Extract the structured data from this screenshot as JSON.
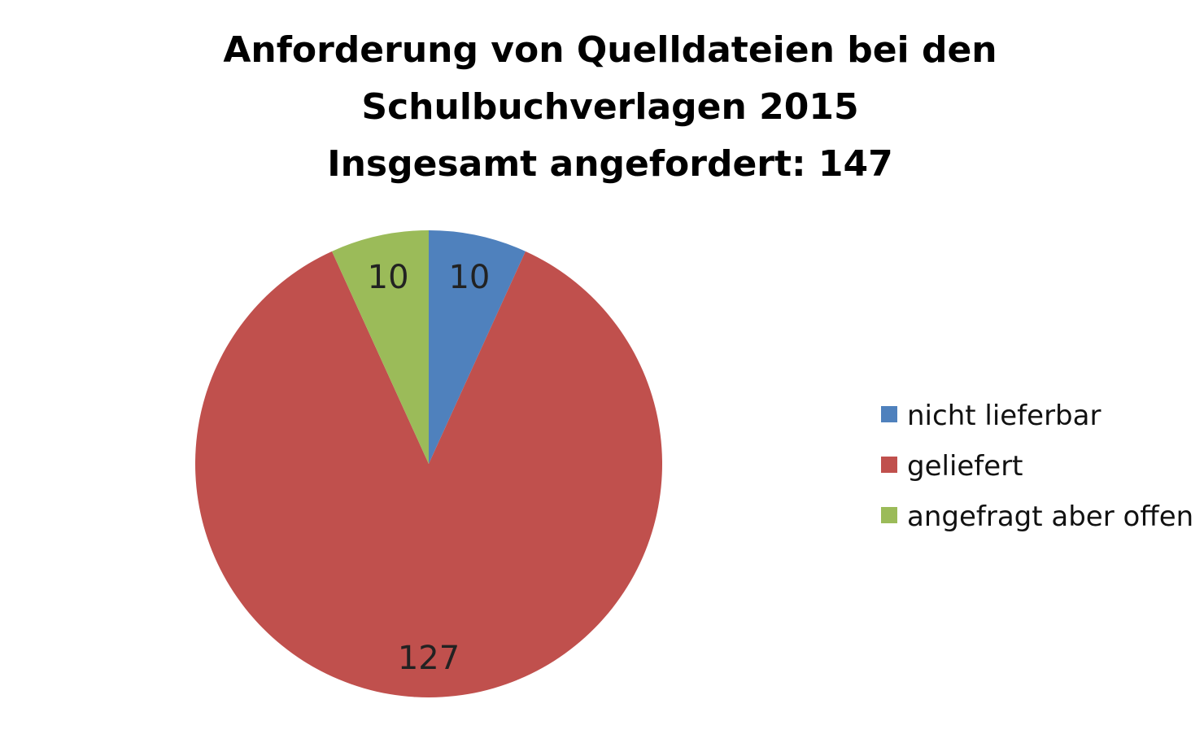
{
  "chart_data": {
    "type": "pie",
    "title_lines": [
      "Anforderung von Quelldateien bei den",
      "Schulbuchverlagen 2015",
      "Insgesamt angefordert: 147"
    ],
    "slices": [
      {
        "label": "nicht lieferbar",
        "value": 10,
        "color": "#4f81bd"
      },
      {
        "label": "geliefert",
        "value": 127,
        "color": "#c0504d"
      },
      {
        "label": "angefragt aber offen",
        "value": 10,
        "color": "#9bbb59"
      }
    ],
    "start_angle": "12 o'clock",
    "direction": "clockwise",
    "legend_position": "right",
    "data_labels": "values"
  }
}
